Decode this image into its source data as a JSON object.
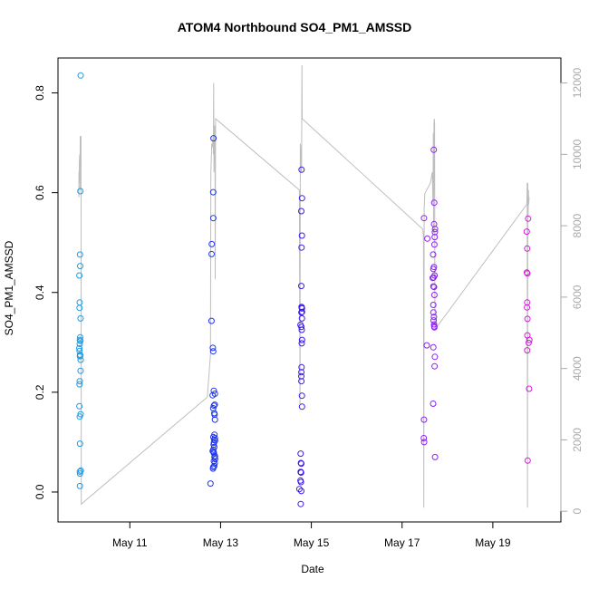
{
  "chart_data": {
    "type": "scatter",
    "title": "ATOM4 Northbound SO4_PM1_AMSSD",
    "xlabel": "Date",
    "ylabel": "SO4_PM1_AMSSD",
    "xlim": [
      "2018-05-09T10:00",
      "2018-05-20T12:00"
    ],
    "ylim": [
      -0.06,
      0.87
    ],
    "y2lim": [
      -300,
      12700
    ],
    "x_ticks": [
      "2018-05-11",
      "2018-05-13",
      "2018-05-15",
      "2018-05-17",
      "2018-05-19"
    ],
    "x_tick_labels": [
      "May 11",
      "May 13",
      "May 15",
      "May 17",
      "May 19"
    ],
    "y_ticks": [
      0.0,
      0.2,
      0.4,
      0.6,
      0.8
    ],
    "y_tick_labels": [
      "0.0",
      "0.2",
      "0.4",
      "0.6",
      "0.8"
    ],
    "y2_ticks": [
      0,
      2000,
      4000,
      6000,
      8000,
      10000,
      12000
    ],
    "y2_tick_labels": [
      "0",
      "2000",
      "4000",
      "6000",
      "8000",
      "10000",
      "12000"
    ],
    "grid": false,
    "legend": "none",
    "colors": {
      "altitude_line": "#bebebe",
      "flight1": "#1e9be6",
      "flight2": "#1f36ee",
      "flight3": "#3a1af2",
      "flight4": "#8c22ee",
      "flight5": "#d61ad8"
    },
    "series": [
      {
        "flight": "flight1",
        "points": [
          [
            "2018-05-09T22:00",
            0.835
          ],
          [
            "2018-05-09T21:50",
            0.603
          ],
          [
            "2018-05-09T21:40",
            0.476
          ],
          [
            "2018-05-09T21:45",
            0.453
          ],
          [
            "2018-05-09T21:20",
            0.434
          ],
          [
            "2018-05-09T21:30",
            0.38
          ],
          [
            "2018-05-09T21:25",
            0.369
          ],
          [
            "2018-05-09T21:55",
            0.348
          ],
          [
            "2018-05-09T21:45",
            0.31
          ],
          [
            "2018-05-09T21:35",
            0.305
          ],
          [
            "2018-05-09T21:50",
            0.303
          ],
          [
            "2018-05-09T21:30",
            0.297
          ],
          [
            "2018-05-09T21:15",
            0.288
          ],
          [
            "2018-05-09T21:25",
            0.283
          ],
          [
            "2018-05-09T21:40",
            0.275
          ],
          [
            "2018-05-09T21:50",
            0.274
          ],
          [
            "2018-05-09T21:35",
            0.272
          ],
          [
            "2018-05-09T22:00",
            0.265
          ],
          [
            "2018-05-09T21:55",
            0.243
          ],
          [
            "2018-05-09T21:30",
            0.222
          ],
          [
            "2018-05-09T21:25",
            0.216
          ],
          [
            "2018-05-09T21:20",
            0.172
          ],
          [
            "2018-05-09T22:00",
            0.156
          ],
          [
            "2018-05-09T21:30",
            0.151
          ],
          [
            "2018-05-09T21:40",
            0.097
          ],
          [
            "2018-05-09T22:05",
            0.043
          ],
          [
            "2018-05-09T21:35",
            0.041
          ],
          [
            "2018-05-09T21:40",
            0.037
          ],
          [
            "2018-05-09T21:35",
            0.012
          ]
        ]
      },
      {
        "flight": "flight2",
        "points": [
          [
            "2018-05-12T20:15",
            0.709
          ],
          [
            "2018-05-12T20:05",
            0.601
          ],
          [
            "2018-05-12T20:10",
            0.549
          ],
          [
            "2018-05-12T19:20",
            0.497
          ],
          [
            "2018-05-12T19:15",
            0.477
          ],
          [
            "2018-05-12T19:10",
            0.343
          ],
          [
            "2018-05-12T19:55",
            0.289
          ],
          [
            "2018-05-12T20:05",
            0.282
          ],
          [
            "2018-05-12T20:25",
            0.203
          ],
          [
            "2018-05-12T21:00",
            0.197
          ],
          [
            "2018-05-12T19:50",
            0.194
          ],
          [
            "2018-05-12T20:55",
            0.175
          ],
          [
            "2018-05-12T20:30",
            0.173
          ],
          [
            "2018-05-12T20:05",
            0.168
          ],
          [
            "2018-05-12T20:40",
            0.158
          ],
          [
            "2018-05-12T20:50",
            0.155
          ],
          [
            "2018-05-12T21:00",
            0.145
          ],
          [
            "2018-05-12T20:45",
            0.115
          ],
          [
            "2018-05-12T20:10",
            0.11
          ],
          [
            "2018-05-12T21:00",
            0.108
          ],
          [
            "2018-05-12T20:35",
            0.105
          ],
          [
            "2018-05-12T21:05",
            0.103
          ],
          [
            "2018-05-12T20:30",
            0.099
          ],
          [
            "2018-05-12T20:20",
            0.095
          ],
          [
            "2018-05-12T20:40",
            0.09
          ],
          [
            "2018-05-12T20:10",
            0.085
          ],
          [
            "2018-05-12T19:50",
            0.082
          ],
          [
            "2018-05-12T20:15",
            0.08
          ],
          [
            "2018-05-12T20:30",
            0.078
          ],
          [
            "2018-05-12T21:00",
            0.072
          ],
          [
            "2018-05-12T20:45",
            0.07
          ],
          [
            "2018-05-12T21:05",
            0.066
          ],
          [
            "2018-05-12T20:25",
            0.062
          ],
          [
            "2018-05-12T20:55",
            0.058
          ],
          [
            "2018-05-12T20:40",
            0.052
          ],
          [
            "2018-05-12T20:10",
            0.05
          ],
          [
            "2018-05-12T20:00",
            0.047
          ],
          [
            "2018-05-12T18:40",
            0.017
          ]
        ]
      },
      {
        "flight": "flight3",
        "points": [
          [
            "2018-05-14T18:50",
            0.646
          ],
          [
            "2018-05-14T19:05",
            0.589
          ],
          [
            "2018-05-14T18:40",
            0.563
          ],
          [
            "2018-05-14T19:00",
            0.514
          ],
          [
            "2018-05-14T18:50",
            0.49
          ],
          [
            "2018-05-14T18:40",
            0.413
          ],
          [
            "2018-05-14T18:50",
            0.371
          ],
          [
            "2018-05-14T18:55",
            0.37
          ],
          [
            "2018-05-14T19:00",
            0.368
          ],
          [
            "2018-05-14T19:05",
            0.361
          ],
          [
            "2018-05-14T18:45",
            0.36
          ],
          [
            "2018-05-14T19:00",
            0.348
          ],
          [
            "2018-05-14T18:15",
            0.335
          ],
          [
            "2018-05-14T18:45",
            0.331
          ],
          [
            "2018-05-14T18:55",
            0.325
          ],
          [
            "2018-05-14T19:05",
            0.305
          ],
          [
            "2018-05-14T18:55",
            0.298
          ],
          [
            "2018-05-14T18:50",
            0.25
          ],
          [
            "2018-05-14T18:45",
            0.24
          ],
          [
            "2018-05-14T18:40",
            0.232
          ],
          [
            "2018-05-14T18:45",
            0.222
          ],
          [
            "2018-05-14T19:00",
            0.193
          ],
          [
            "2018-05-14T19:05",
            0.171
          ],
          [
            "2018-05-14T18:20",
            0.077
          ],
          [
            "2018-05-14T18:30",
            0.058
          ],
          [
            "2018-05-14T18:40",
            0.057
          ],
          [
            "2018-05-14T18:20",
            0.04
          ],
          [
            "2018-05-14T18:25",
            0.04
          ],
          [
            "2018-05-14T18:35",
            0.039
          ],
          [
            "2018-05-14T18:15",
            0.023
          ],
          [
            "2018-05-14T18:30",
            0.02
          ],
          [
            "2018-05-14T17:40",
            0.006
          ],
          [
            "2018-05-14T18:40",
            0.002
          ],
          [
            "2018-05-14T18:25",
            -0.024
          ]
        ]
      },
      {
        "flight": "flight4",
        "points": [
          [
            "2018-05-17T16:45",
            0.686
          ],
          [
            "2018-05-17T17:00",
            0.58
          ],
          [
            "2018-05-17T11:35",
            0.549
          ],
          [
            "2018-05-17T16:55",
            0.537
          ],
          [
            "2018-05-17T17:25",
            0.527
          ],
          [
            "2018-05-17T17:20",
            0.521
          ],
          [
            "2018-05-17T17:15",
            0.511
          ],
          [
            "2018-05-17T13:20",
            0.508
          ],
          [
            "2018-05-17T17:05",
            0.496
          ],
          [
            "2018-05-17T16:25",
            0.476
          ],
          [
            "2018-05-17T16:50",
            0.451
          ],
          [
            "2018-05-17T16:30",
            0.447
          ],
          [
            "2018-05-17T17:10",
            0.434
          ],
          [
            "2018-05-17T16:40",
            0.43
          ],
          [
            "2018-05-17T16:10",
            0.429
          ],
          [
            "2018-05-17T16:35",
            0.412
          ],
          [
            "2018-05-17T16:55",
            0.411
          ],
          [
            "2018-05-17T17:05",
            0.395
          ],
          [
            "2018-05-17T16:30",
            0.375
          ],
          [
            "2018-05-17T16:35",
            0.36
          ],
          [
            "2018-05-17T16:50",
            0.351
          ],
          [
            "2018-05-17T16:40",
            0.344
          ],
          [
            "2018-05-17T16:55",
            0.336
          ],
          [
            "2018-05-17T17:00",
            0.332
          ],
          [
            "2018-05-17T17:05",
            0.33
          ],
          [
            "2018-05-17T13:05",
            0.294
          ],
          [
            "2018-05-17T16:30",
            0.29
          ],
          [
            "2018-05-17T17:20",
            0.271
          ],
          [
            "2018-05-17T17:10",
            0.252
          ],
          [
            "2018-05-17T16:25",
            0.177
          ],
          [
            "2018-05-17T11:35",
            0.145
          ],
          [
            "2018-05-17T11:30",
            0.108
          ],
          [
            "2018-05-17T11:40",
            0.1
          ],
          [
            "2018-05-17T17:25",
            0.07
          ]
        ]
      },
      {
        "flight": "flight5",
        "points": [
          [
            "2018-05-19T18:40",
            0.548
          ],
          [
            "2018-05-19T17:55",
            0.522
          ],
          [
            "2018-05-19T18:10",
            0.488
          ],
          [
            "2018-05-19T18:00",
            0.44
          ],
          [
            "2018-05-19T18:15",
            0.438
          ],
          [
            "2018-05-19T18:10",
            0.38
          ],
          [
            "2018-05-19T18:05",
            0.37
          ],
          [
            "2018-05-19T18:20",
            0.347
          ],
          [
            "2018-05-19T18:15",
            0.314
          ],
          [
            "2018-05-19T19:20",
            0.305
          ],
          [
            "2018-05-19T18:55",
            0.299
          ],
          [
            "2018-05-19T18:10",
            0.284
          ],
          [
            "2018-05-19T19:10",
            0.207
          ],
          [
            "2018-05-19T18:25",
            0.063
          ]
        ]
      }
    ],
    "altitude_line": [
      [
        "2018-05-09T21:00",
        8800
      ],
      [
        "2018-05-09T21:05",
        9500
      ],
      [
        "2018-05-09T21:10",
        9200
      ],
      [
        "2018-05-09T21:20",
        9800
      ],
      [
        "2018-05-09T21:30",
        10000
      ],
      [
        "2018-05-09T21:40",
        9000
      ],
      [
        "2018-05-09T21:45",
        10500
      ],
      [
        "2018-05-09T22:00",
        10500
      ],
      [
        "2018-05-09T22:10",
        10500
      ],
      [
        "2018-05-09T22:20",
        200
      ],
      [
        "2018-05-12T17:00",
        3200
      ],
      [
        "2018-05-12T18:40",
        4400
      ],
      [
        "2018-05-12T18:50",
        9500
      ],
      [
        "2018-05-12T19:20",
        10300
      ],
      [
        "2018-05-12T19:40",
        10200
      ],
      [
        "2018-05-12T20:00",
        10500
      ],
      [
        "2018-05-12T20:10",
        10000
      ],
      [
        "2018-05-12T20:20",
        12000
      ],
      [
        "2018-05-12T20:30",
        9500
      ],
      [
        "2018-05-12T20:40",
        10800
      ],
      [
        "2018-05-12T20:50",
        9800
      ],
      [
        "2018-05-12T21:00",
        10800
      ],
      [
        "2018-05-12T21:10",
        6500
      ],
      [
        "2018-05-12T21:20",
        11000
      ],
      [
        "2018-05-14T17:40",
        9000
      ],
      [
        "2018-05-14T18:00",
        3000
      ],
      [
        "2018-05-14T18:10",
        10300
      ],
      [
        "2018-05-14T18:20",
        10200
      ],
      [
        "2018-05-14T18:30",
        9500
      ],
      [
        "2018-05-14T18:40",
        10000
      ],
      [
        "2018-05-14T18:50",
        9500
      ],
      [
        "2018-05-14T19:00",
        12500
      ],
      [
        "2018-05-14T19:10",
        11000
      ],
      [
        "2018-05-17T11:00",
        7900
      ],
      [
        "2018-05-17T11:20",
        7600
      ],
      [
        "2018-05-17T11:30",
        100
      ],
      [
        "2018-05-17T11:40",
        8500
      ],
      [
        "2018-05-17T12:00",
        8900
      ],
      [
        "2018-05-17T13:00",
        9000
      ],
      [
        "2018-05-17T15:00",
        9200
      ],
      [
        "2018-05-17T16:00",
        9500
      ],
      [
        "2018-05-17T16:20",
        8600
      ],
      [
        "2018-05-17T16:30",
        10600
      ],
      [
        "2018-05-17T16:40",
        7800
      ],
      [
        "2018-05-17T16:50",
        10800
      ],
      [
        "2018-05-17T17:00",
        11000
      ],
      [
        "2018-05-17T17:10",
        10900
      ],
      [
        "2018-05-17T17:20",
        6000
      ],
      [
        "2018-05-17T17:30",
        5100
      ],
      [
        "2018-05-19T18:00",
        8600
      ],
      [
        "2018-05-19T18:10",
        9200
      ],
      [
        "2018-05-19T18:20",
        100
      ],
      [
        "2018-05-19T18:30",
        9200
      ],
      [
        "2018-05-19T18:40",
        8200
      ],
      [
        "2018-05-19T18:50",
        9000
      ],
      [
        "2018-05-19T19:00",
        8600
      ],
      [
        "2018-05-19T19:10",
        8800
      ]
    ]
  }
}
